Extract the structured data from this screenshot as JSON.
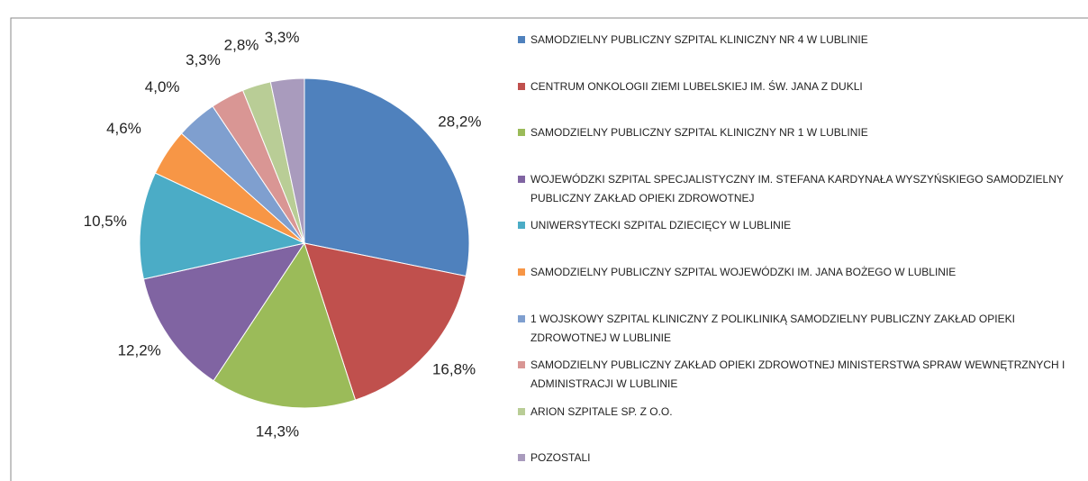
{
  "chart_data": {
    "type": "pie",
    "categories": [
      "SAMODZIELNY PUBLICZNY SZPITAL KLINICZNY NR 4 W LUBLINIE",
      "CENTRUM ONKOLOGII ZIEMI LUBELSKIEJ IM. ŚW. JANA Z DUKLI",
      "SAMODZIELNY PUBLICZNY SZPITAL KLINICZNY NR 1 W LUBLINIE",
      "WOJEWÓDZKI SZPITAL SPECJALISTYCZNY IM. STEFANA KARDYNAŁA WYSZYŃSKIEGO SAMODZIELNY PUBLICZNY ZAKŁAD OPIEKI ZDROWOTNEJ",
      "UNIWERSYTECKI SZPITAL DZIECIĘCY W LUBLINIE",
      "SAMODZIELNY PUBLICZNY SZPITAL WOJEWÓDZKI IM. JANA BOŻEGO W LUBLINIE",
      "1 WOJSKOWY SZPITAL KLINICZNY Z POLIKLINIKĄ SAMODZIELNY PUBLICZNY ZAKŁAD OPIEKI ZDROWOTNEJ W LUBLINIE",
      "SAMODZIELNY PUBLICZNY ZAKŁAD OPIEKI ZDROWOTNEJ MINISTERSTWA SPRAW WEWNĘTRZNYCH I ADMINISTRACJI W LUBLINIE",
      "ARION SZPITALE SP. Z O.O.",
      "POZOSTALI"
    ],
    "values": [
      28.2,
      16.8,
      14.3,
      12.2,
      10.5,
      4.6,
      4.0,
      3.3,
      2.8,
      3.3
    ],
    "value_labels": [
      "28,2%",
      "16,8%",
      "14,3%",
      "12,2%",
      "10,5%",
      "4,6%",
      "4,0%",
      "3,3%",
      "2,8%",
      "3,3%"
    ],
    "colors": [
      "#4f81bd",
      "#c0504d",
      "#9bbb59",
      "#8064a2",
      "#4bacc6",
      "#f79646",
      "#7f9fcf",
      "#d99694",
      "#b9cd96",
      "#a99bbd"
    ],
    "legend": "right"
  }
}
